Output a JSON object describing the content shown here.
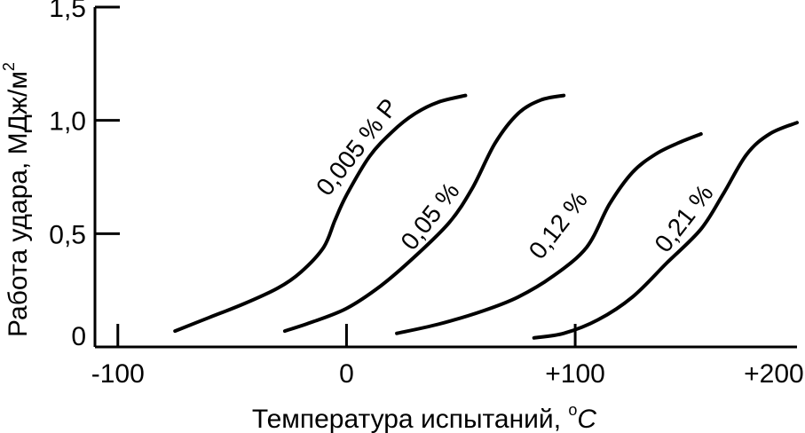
{
  "chart_data": {
    "type": "line",
    "title": "",
    "xlabel": "Температура испытаний,",
    "xlabel_unit_sup": "o",
    "xlabel_unit": "C",
    "ylabel": "Работа удара, МДж/м",
    "ylabel_sup": "2",
    "xlim": [
      -110,
      197
    ],
    "ylim": [
      0,
      1.5
    ],
    "x_ticks": [
      {
        "value": -100,
        "label": "-100"
      },
      {
        "value": 0,
        "label": "0"
      },
      {
        "value": 100,
        "label": "+100"
      },
      {
        "value": 200,
        "label": "+200"
      }
    ],
    "y_ticks": [
      {
        "value": 0,
        "label": "0"
      },
      {
        "value": 0.5,
        "label": "0,5"
      },
      {
        "value": 1.0,
        "label": "1,0"
      },
      {
        "value": 1.5,
        "label": "1,5"
      }
    ],
    "grid": false,
    "series": [
      {
        "name": "0,005 % P",
        "x": [
          -75,
          -60,
          -45,
          -30,
          -20,
          -10,
          -5,
          0,
          10,
          20,
          30,
          40,
          52
        ],
        "y": [
          0.07,
          0.13,
          0.19,
          0.26,
          0.33,
          0.44,
          0.56,
          0.67,
          0.84,
          0.95,
          1.03,
          1.08,
          1.11
        ]
      },
      {
        "name": "0,05 %",
        "x": [
          -27,
          -15,
          0,
          15,
          30,
          45,
          55,
          65,
          75,
          85,
          95
        ],
        "y": [
          0.07,
          0.11,
          0.17,
          0.27,
          0.4,
          0.55,
          0.7,
          0.9,
          1.03,
          1.09,
          1.11
        ]
      },
      {
        "name": "0,12 %",
        "x": [
          22,
          40,
          60,
          75,
          90,
          105,
          115,
          125,
          135,
          145,
          155
        ],
        "y": [
          0.06,
          0.1,
          0.16,
          0.22,
          0.31,
          0.44,
          0.63,
          0.77,
          0.85,
          0.9,
          0.94
        ]
      },
      {
        "name": "0,21 %",
        "x": [
          82,
          95,
          110,
          125,
          140,
          155,
          165,
          175,
          185,
          197
        ],
        "y": [
          0.04,
          0.06,
          0.12,
          0.22,
          0.37,
          0.52,
          0.68,
          0.85,
          0.94,
          0.99
        ]
      }
    ],
    "curve_labels": [
      {
        "text": "0,005 % P",
        "x": -8,
        "y": 0.66,
        "angle": -52
      },
      {
        "text": "0,05 %",
        "x": 29,
        "y": 0.42,
        "angle": -52
      },
      {
        "text": "0,12 %",
        "x": 85,
        "y": 0.38,
        "angle": -52
      },
      {
        "text": "0,21 %",
        "x": 140,
        "y": 0.41,
        "angle": -52
      }
    ]
  }
}
